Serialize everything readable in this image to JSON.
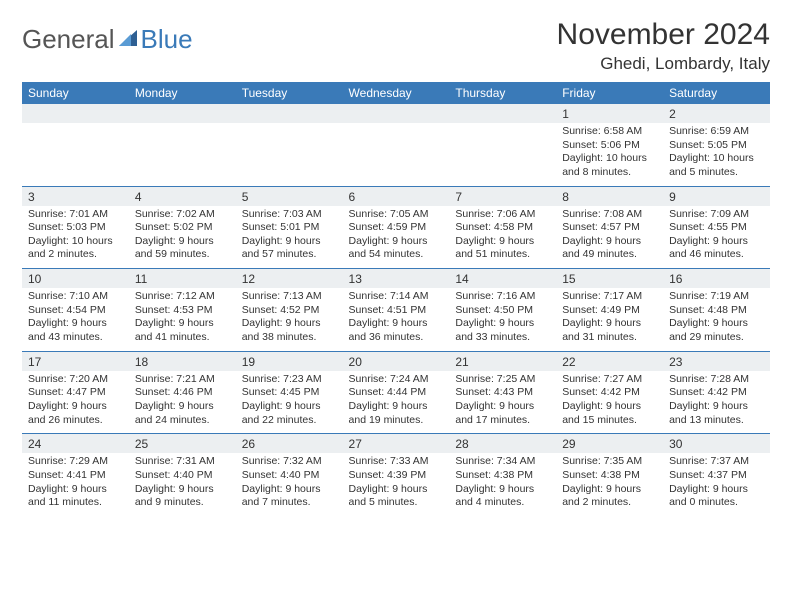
{
  "logo": {
    "text1": "General",
    "text2": "Blue"
  },
  "title": "November 2024",
  "location": "Ghedi, Lombardy, Italy",
  "colors": {
    "header_bg": "#3a7ab8",
    "header_text": "#ffffff",
    "daynum_bg": "#eceff1",
    "cell_border": "#3a7ab8",
    "text": "#333333",
    "background": "#ffffff"
  },
  "day_headers": [
    "Sunday",
    "Monday",
    "Tuesday",
    "Wednesday",
    "Thursday",
    "Friday",
    "Saturday"
  ],
  "weeks": [
    [
      null,
      null,
      null,
      null,
      null,
      {
        "n": "1",
        "sunrise": "6:58 AM",
        "sunset": "5:06 PM",
        "daylight": "10 hours and 8 minutes."
      },
      {
        "n": "2",
        "sunrise": "6:59 AM",
        "sunset": "5:05 PM",
        "daylight": "10 hours and 5 minutes."
      }
    ],
    [
      {
        "n": "3",
        "sunrise": "7:01 AM",
        "sunset": "5:03 PM",
        "daylight": "10 hours and 2 minutes."
      },
      {
        "n": "4",
        "sunrise": "7:02 AM",
        "sunset": "5:02 PM",
        "daylight": "9 hours and 59 minutes."
      },
      {
        "n": "5",
        "sunrise": "7:03 AM",
        "sunset": "5:01 PM",
        "daylight": "9 hours and 57 minutes."
      },
      {
        "n": "6",
        "sunrise": "7:05 AM",
        "sunset": "4:59 PM",
        "daylight": "9 hours and 54 minutes."
      },
      {
        "n": "7",
        "sunrise": "7:06 AM",
        "sunset": "4:58 PM",
        "daylight": "9 hours and 51 minutes."
      },
      {
        "n": "8",
        "sunrise": "7:08 AM",
        "sunset": "4:57 PM",
        "daylight": "9 hours and 49 minutes."
      },
      {
        "n": "9",
        "sunrise": "7:09 AM",
        "sunset": "4:55 PM",
        "daylight": "9 hours and 46 minutes."
      }
    ],
    [
      {
        "n": "10",
        "sunrise": "7:10 AM",
        "sunset": "4:54 PM",
        "daylight": "9 hours and 43 minutes."
      },
      {
        "n": "11",
        "sunrise": "7:12 AM",
        "sunset": "4:53 PM",
        "daylight": "9 hours and 41 minutes."
      },
      {
        "n": "12",
        "sunrise": "7:13 AM",
        "sunset": "4:52 PM",
        "daylight": "9 hours and 38 minutes."
      },
      {
        "n": "13",
        "sunrise": "7:14 AM",
        "sunset": "4:51 PM",
        "daylight": "9 hours and 36 minutes."
      },
      {
        "n": "14",
        "sunrise": "7:16 AM",
        "sunset": "4:50 PM",
        "daylight": "9 hours and 33 minutes."
      },
      {
        "n": "15",
        "sunrise": "7:17 AM",
        "sunset": "4:49 PM",
        "daylight": "9 hours and 31 minutes."
      },
      {
        "n": "16",
        "sunrise": "7:19 AM",
        "sunset": "4:48 PM",
        "daylight": "9 hours and 29 minutes."
      }
    ],
    [
      {
        "n": "17",
        "sunrise": "7:20 AM",
        "sunset": "4:47 PM",
        "daylight": "9 hours and 26 minutes."
      },
      {
        "n": "18",
        "sunrise": "7:21 AM",
        "sunset": "4:46 PM",
        "daylight": "9 hours and 24 minutes."
      },
      {
        "n": "19",
        "sunrise": "7:23 AM",
        "sunset": "4:45 PM",
        "daylight": "9 hours and 22 minutes."
      },
      {
        "n": "20",
        "sunrise": "7:24 AM",
        "sunset": "4:44 PM",
        "daylight": "9 hours and 19 minutes."
      },
      {
        "n": "21",
        "sunrise": "7:25 AM",
        "sunset": "4:43 PM",
        "daylight": "9 hours and 17 minutes."
      },
      {
        "n": "22",
        "sunrise": "7:27 AM",
        "sunset": "4:42 PM",
        "daylight": "9 hours and 15 minutes."
      },
      {
        "n": "23",
        "sunrise": "7:28 AM",
        "sunset": "4:42 PM",
        "daylight": "9 hours and 13 minutes."
      }
    ],
    [
      {
        "n": "24",
        "sunrise": "7:29 AM",
        "sunset": "4:41 PM",
        "daylight": "9 hours and 11 minutes."
      },
      {
        "n": "25",
        "sunrise": "7:31 AM",
        "sunset": "4:40 PM",
        "daylight": "9 hours and 9 minutes."
      },
      {
        "n": "26",
        "sunrise": "7:32 AM",
        "sunset": "4:40 PM",
        "daylight": "9 hours and 7 minutes."
      },
      {
        "n": "27",
        "sunrise": "7:33 AM",
        "sunset": "4:39 PM",
        "daylight": "9 hours and 5 minutes."
      },
      {
        "n": "28",
        "sunrise": "7:34 AM",
        "sunset": "4:38 PM",
        "daylight": "9 hours and 4 minutes."
      },
      {
        "n": "29",
        "sunrise": "7:35 AM",
        "sunset": "4:38 PM",
        "daylight": "9 hours and 2 minutes."
      },
      {
        "n": "30",
        "sunrise": "7:37 AM",
        "sunset": "4:37 PM",
        "daylight": "9 hours and 0 minutes."
      }
    ]
  ],
  "labels": {
    "sunrise": "Sunrise:",
    "sunset": "Sunset:",
    "daylight": "Daylight:"
  }
}
